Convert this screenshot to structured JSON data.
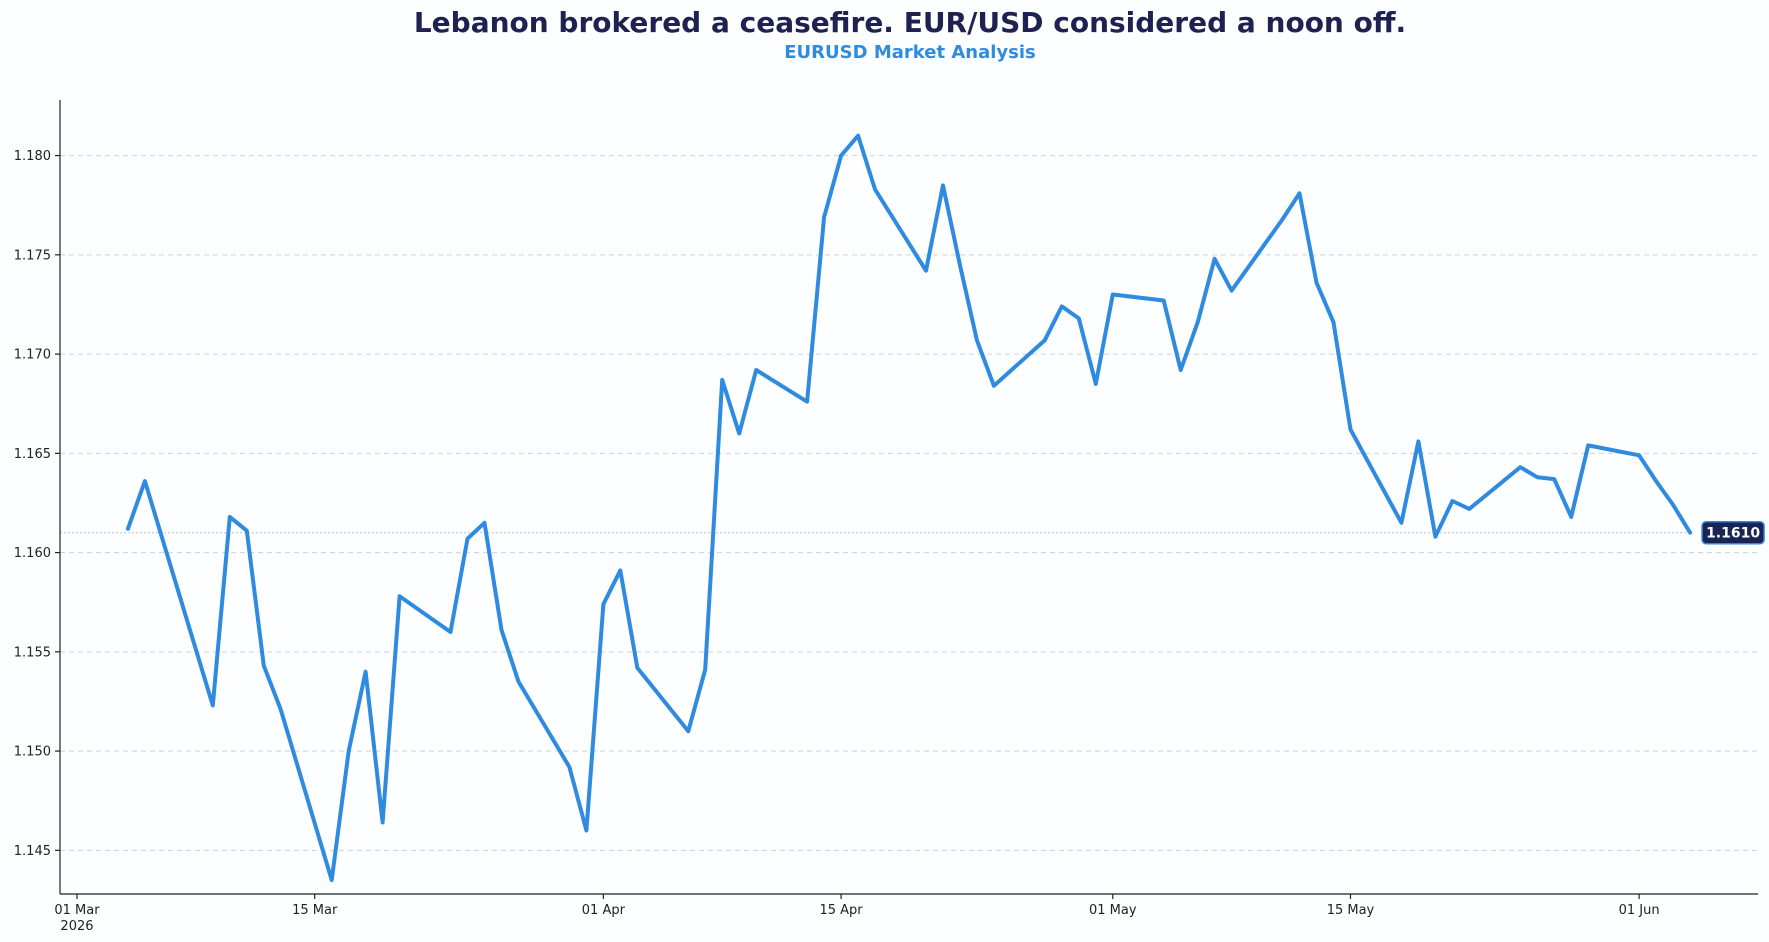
{
  "title": "Lebanon brokered a ceasefire. EUR/USD considered a noon off.",
  "subtitle": "EURUSD Market Analysis",
  "colors": {
    "line": "#2f8be0",
    "title": "#1f2150",
    "subtitle": "#2f8be0",
    "badge_bg": "#1a2452",
    "badge_border": "#2f8be0"
  },
  "chart_data": {
    "type": "line",
    "title": "Lebanon brokered a ceasefire. EUR/USD considered a noon off.",
    "subtitle": "EURUSD Market Analysis",
    "xlabel": "",
    "ylabel": "",
    "xlim": [
      "2026-02-28",
      "2026-06-08"
    ],
    "ylim": [
      1.1428,
      1.1828
    ],
    "grid": "horizontal dashed",
    "last_value_label": "1.1610",
    "x_ticks": [
      {
        "date": "2026-03-01",
        "label": "01 Mar",
        "sublabel": "2026"
      },
      {
        "date": "2026-03-15",
        "label": "15 Mar",
        "sublabel": ""
      },
      {
        "date": "2026-04-01",
        "label": "01 Apr",
        "sublabel": ""
      },
      {
        "date": "2026-04-15",
        "label": "15 Apr",
        "sublabel": ""
      },
      {
        "date": "2026-05-01",
        "label": "01 May",
        "sublabel": ""
      },
      {
        "date": "2026-05-15",
        "label": "15 May",
        "sublabel": ""
      },
      {
        "date": "2026-06-01",
        "label": "01 Jun",
        "sublabel": ""
      }
    ],
    "y_ticks": [
      {
        "value": 1.145,
        "label": "1.145"
      },
      {
        "value": 1.15,
        "label": "1.150"
      },
      {
        "value": 1.155,
        "label": "1.155"
      },
      {
        "value": 1.16,
        "label": "1.160"
      },
      {
        "value": 1.165,
        "label": "1.165"
      },
      {
        "value": 1.17,
        "label": "1.170"
      },
      {
        "value": 1.175,
        "label": "1.175"
      },
      {
        "value": 1.18,
        "label": "1.180"
      }
    ],
    "series": [
      {
        "name": "",
        "points": [
          [
            "2026-03-04",
            1.1612
          ],
          [
            "2026-03-05",
            1.1636
          ],
          [
            "2026-03-09",
            1.1523
          ],
          [
            "2026-03-10",
            1.1618
          ],
          [
            "2026-03-11",
            1.1611
          ],
          [
            "2026-03-12",
            1.1543
          ],
          [
            "2026-03-13",
            1.1521
          ],
          [
            "2026-03-16",
            1.1435
          ],
          [
            "2026-03-17",
            1.15
          ],
          [
            "2026-03-18",
            1.154
          ],
          [
            "2026-03-19",
            1.1464
          ],
          [
            "2026-03-20",
            1.1578
          ],
          [
            "2026-03-23",
            1.156
          ],
          [
            "2026-03-24",
            1.1607
          ],
          [
            "2026-03-25",
            1.1615
          ],
          [
            "2026-03-26",
            1.1561
          ],
          [
            "2026-03-27",
            1.1535
          ],
          [
            "2026-03-30",
            1.1492
          ],
          [
            "2026-03-31",
            1.146
          ],
          [
            "2026-04-01",
            1.1574
          ],
          [
            "2026-04-02",
            1.1591
          ],
          [
            "2026-04-03",
            1.1542
          ],
          [
            "2026-04-06",
            1.151
          ],
          [
            "2026-04-07",
            1.1541
          ],
          [
            "2026-04-08",
            1.1687
          ],
          [
            "2026-04-09",
            1.166
          ],
          [
            "2026-04-10",
            1.1692
          ],
          [
            "2026-04-13",
            1.1676
          ],
          [
            "2026-04-14",
            1.1769
          ],
          [
            "2026-04-15",
            1.18
          ],
          [
            "2026-04-16",
            1.181
          ],
          [
            "2026-04-17",
            1.1783
          ],
          [
            "2026-04-20",
            1.1742
          ],
          [
            "2026-04-21",
            1.1785
          ],
          [
            "2026-04-22",
            1.1745
          ],
          [
            "2026-04-23",
            1.1707
          ],
          [
            "2026-04-24",
            1.1684
          ],
          [
            "2026-04-27",
            1.1707
          ],
          [
            "2026-04-28",
            1.1724
          ],
          [
            "2026-04-29",
            1.1718
          ],
          [
            "2026-04-30",
            1.1685
          ],
          [
            "2026-05-01",
            1.173
          ],
          [
            "2026-05-04",
            1.1727
          ],
          [
            "2026-05-05",
            1.1692
          ],
          [
            "2026-05-06",
            1.1716
          ],
          [
            "2026-05-07",
            1.1748
          ],
          [
            "2026-05-08",
            1.1732
          ],
          [
            "2026-05-11",
            1.1768
          ],
          [
            "2026-05-12",
            1.1781
          ],
          [
            "2026-05-13",
            1.1736
          ],
          [
            "2026-05-14",
            1.1716
          ],
          [
            "2026-05-15",
            1.1662
          ],
          [
            "2026-05-18",
            1.1615
          ],
          [
            "2026-05-19",
            1.1656
          ],
          [
            "2026-05-20",
            1.1608
          ],
          [
            "2026-05-21",
            1.1626
          ],
          [
            "2026-05-22",
            1.1622
          ],
          [
            "2026-05-25",
            1.1643
          ],
          [
            "2026-05-26",
            1.1638
          ],
          [
            "2026-05-27",
            1.1637
          ],
          [
            "2026-05-28",
            1.1618
          ],
          [
            "2026-05-29",
            1.1654
          ],
          [
            "2026-06-01",
            1.1649
          ],
          [
            "2026-06-02",
            1.1636
          ],
          [
            "2026-06-03",
            1.1624
          ],
          [
            "2026-06-04",
            1.161
          ]
        ]
      }
    ]
  }
}
